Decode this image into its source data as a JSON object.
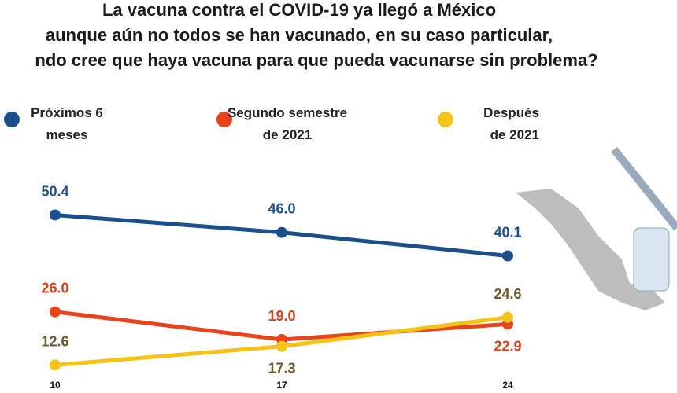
{
  "chart_data": {
    "type": "line",
    "title": [
      "La vacuna contra el COVID-19 ya llegó a México",
      "aunque aún no todos se han vacunado, en su caso particular,",
      "ndo cree que haya vacuna para que pueda vacunarse sin problema?"
    ],
    "categories": [
      "10",
      "17",
      "24"
    ],
    "series": [
      {
        "name": "Próximos 6 meses",
        "color": "#1b4f8c",
        "values": [
          50.4,
          46.0,
          40.1
        ],
        "value_labels": [
          "50.4",
          "46.0",
          "40.1"
        ]
      },
      {
        "name": "Segundo semestre de 2021",
        "color": "#e8431a",
        "values": [
          26.0,
          19.0,
          22.9
        ],
        "value_labels": [
          "26.0",
          "19.0",
          "22.9"
        ]
      },
      {
        "name": "Después de 2021",
        "color": "#f5c218",
        "values": [
          12.6,
          17.3,
          24.6
        ],
        "value_labels": [
          "12.6",
          "17.3",
          "24.6"
        ]
      }
    ]
  }
}
